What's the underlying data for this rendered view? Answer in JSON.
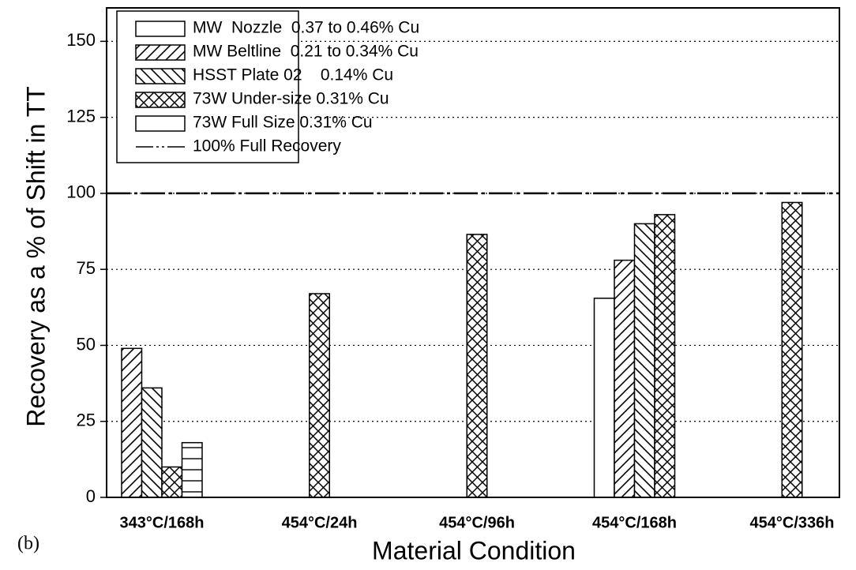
{
  "chart_data": {
    "type": "bar",
    "categories": [
      "343°C/168h",
      "454°C/24h",
      "454°C/96h",
      "454°C/168h",
      "454°C/336h"
    ],
    "series": [
      {
        "name": "MW  Nozzle  0.37 to 0.46% Cu",
        "color": "#000000",
        "pattern": "none",
        "values": [
          null,
          null,
          null,
          65.5,
          null
        ]
      },
      {
        "name": "MW Beltline  0.21 to 0.34% Cu",
        "color": "#000000",
        "pattern": "forward-hatch",
        "values": [
          49,
          null,
          null,
          78,
          null
        ]
      },
      {
        "name": "HSST Plate 02    0.14% Cu",
        "color": "#000000",
        "pattern": "back-hatch",
        "values": [
          36,
          null,
          null,
          90,
          null
        ]
      },
      {
        "name": "73W Under-size 0.31% Cu",
        "color": "#000000",
        "pattern": "cross-hatch",
        "values": [
          10,
          67,
          86.5,
          93,
          97
        ]
      },
      {
        "name": "73W Full Size 0.31% Cu",
        "color": "#000000",
        "pattern": "horizontal",
        "values": [
          18,
          null,
          null,
          null,
          null
        ]
      }
    ],
    "reference": {
      "name": "100% Full Recovery",
      "value": 100
    },
    "xlabel": "Material Condition",
    "ylabel": "Recovery as a % of Shift in TT",
    "annotation": "(b)",
    "ylim": [
      0,
      161
    ],
    "yticks": [
      0,
      25,
      50,
      75,
      100,
      125,
      150
    ],
    "grid": true,
    "legend": "upper left"
  }
}
